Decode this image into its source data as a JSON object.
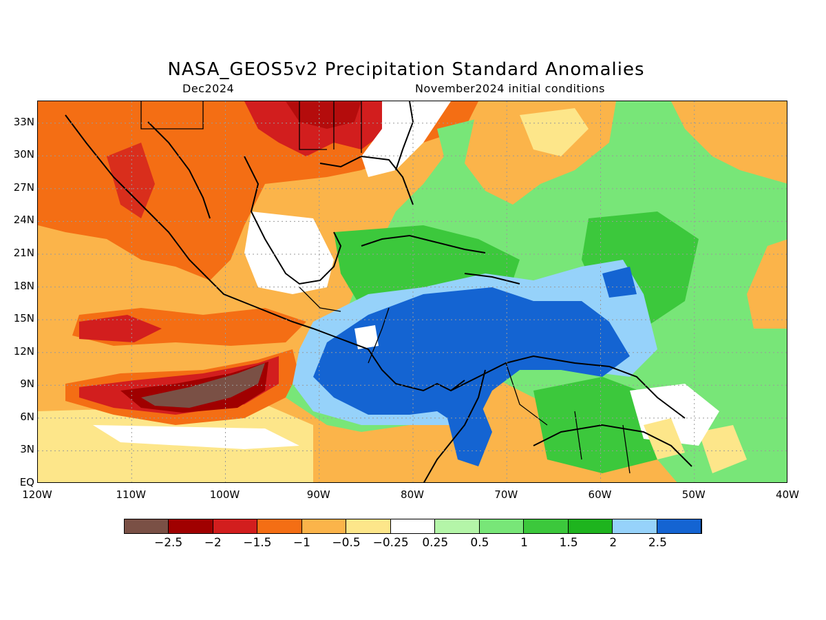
{
  "title": "NASA_GEOS5v2 Precipitation Standard Anomalies",
  "subtitle_left": "Dec2024",
  "subtitle_right": "November2024 initial conditions",
  "map": {
    "lon_range": [
      -120,
      -40
    ],
    "lat_range": [
      0,
      35
    ],
    "lon_ticks": [
      "120W",
      "110W",
      "100W",
      "90W",
      "80W",
      "70W",
      "60W",
      "50W",
      "40W"
    ],
    "lat_ticks": [
      "EQ",
      "3N",
      "6N",
      "9N",
      "12N",
      "15N",
      "18N",
      "21N",
      "24N",
      "27N",
      "30N",
      "33N"
    ]
  },
  "legend": {
    "colors": [
      "#7a5045",
      "#a00000",
      "#d21e1e",
      "#f46e14",
      "#fbb44a",
      "#fde68a",
      "#ffffff",
      "#b4f5a8",
      "#78e678",
      "#3cc83c",
      "#1eb41e",
      "#96d2fa",
      "#1464d2"
    ],
    "labels": [
      "−2.5",
      "−2",
      "−1.5",
      "−1",
      "−0.5",
      "−0.25",
      "0.25",
      "0.5",
      "1",
      "1.5",
      "2",
      "2.5"
    ]
  }
}
